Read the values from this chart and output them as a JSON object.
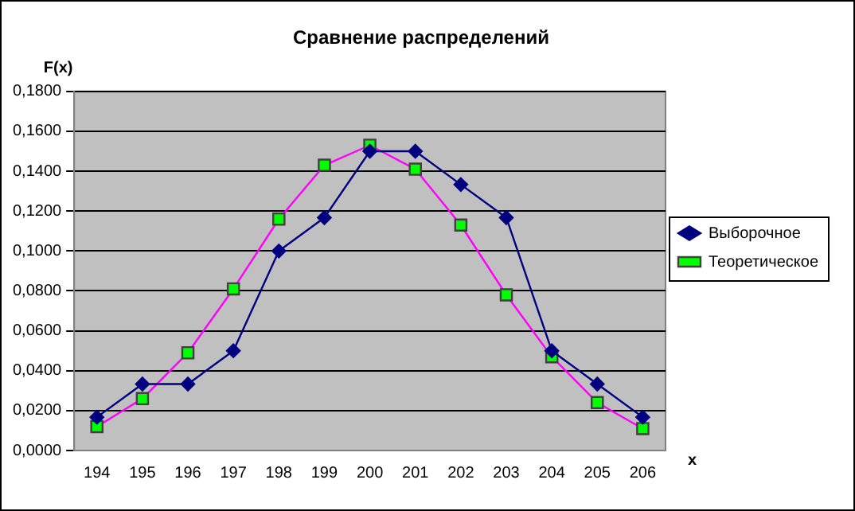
{
  "chart_data": {
    "type": "line",
    "title": "Сравнение распределений",
    "xlabel": "x",
    "ylabel": "F(x)",
    "categories": [
      "194",
      "195",
      "196",
      "197",
      "198",
      "199",
      "200",
      "201",
      "202",
      "203",
      "204",
      "205",
      "206"
    ],
    "series": [
      {
        "name": "Выборочное",
        "color": "#000080",
        "marker": "diamond",
        "values": [
          0.0167,
          0.0333,
          0.0333,
          0.05,
          0.1,
          0.1167,
          0.15,
          0.15,
          0.1333,
          0.1167,
          0.05,
          0.0333,
          0.0167
        ]
      },
      {
        "name": "Теоретическое",
        "color": "#ff00ff",
        "marker": "square",
        "values": [
          0.012,
          0.026,
          0.049,
          0.081,
          0.116,
          0.143,
          0.153,
          0.141,
          0.113,
          0.078,
          0.047,
          0.024,
          0.011
        ]
      }
    ],
    "ylim": [
      0,
      0.18
    ],
    "yticks": [
      {
        "value": 0,
        "label": "0,0000"
      },
      {
        "value": 0.02,
        "label": "0,0200"
      },
      {
        "value": 0.04,
        "label": "0,0400"
      },
      {
        "value": 0.06,
        "label": "0,0600"
      },
      {
        "value": 0.08,
        "label": "0,0800"
      },
      {
        "value": 0.1,
        "label": "0,1000"
      },
      {
        "value": 0.12,
        "label": "0,1200"
      },
      {
        "value": 0.14,
        "label": "0,1400"
      },
      {
        "value": 0.16,
        "label": "0,1600"
      },
      {
        "value": 0.18,
        "label": "0,1800"
      }
    ],
    "grid": "y",
    "legend": "right",
    "line_style": "solid"
  }
}
